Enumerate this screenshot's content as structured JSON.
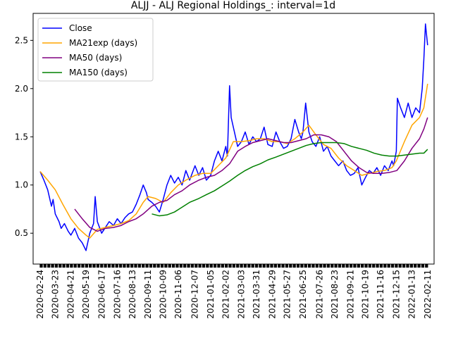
{
  "chart_data": {
    "type": "line",
    "title": "ALJJ - ALJ Regional Holdings_: interval=1d",
    "xlabel": "",
    "ylabel": "",
    "ylim": [
      0.18,
      2.78
    ],
    "xlim": [
      "2020-02-11",
      "2022-02-23"
    ],
    "y_ticks": [
      0.5,
      1.0,
      1.5,
      2.0,
      2.5
    ],
    "y_tick_labels": [
      "0.5",
      "1.0",
      "1.5",
      "2.0",
      "2.5"
    ],
    "x_tick_labels": [
      "2020-02-24",
      "2020-03-23",
      "2020-04-21",
      "2020-05-19",
      "2020-06-17",
      "2020-07-16",
      "2020-08-13",
      "2020-09-11",
      "2020-10-09",
      "2020-11-06",
      "2020-12-07",
      "2021-01-05",
      "2021-02-02",
      "2021-03-03",
      "2021-03-31",
      "2021-04-29",
      "2021-05-27",
      "2021-06-25",
      "2021-07-26",
      "2021-08-23",
      "2021-09-21",
      "2021-10-19",
      "2021-11-16",
      "2021-12-15",
      "2022-01-13",
      "2022-02-11"
    ],
    "grid": false,
    "legend_position": "upper-left",
    "series": [
      {
        "name": "Close",
        "color": "#0000ff",
        "points": [
          [
            "2020-02-24",
            1.14
          ],
          [
            "2020-03-02",
            1.05
          ],
          [
            "2020-03-09",
            0.95
          ],
          [
            "2020-03-16",
            0.78
          ],
          [
            "2020-03-19",
            0.85
          ],
          [
            "2020-03-23",
            0.7
          ],
          [
            "2020-03-30",
            0.62
          ],
          [
            "2020-04-03",
            0.55
          ],
          [
            "2020-04-09",
            0.6
          ],
          [
            "2020-04-16",
            0.52
          ],
          [
            "2020-04-21",
            0.48
          ],
          [
            "2020-04-28",
            0.55
          ],
          [
            "2020-05-05",
            0.45
          ],
          [
            "2020-05-12",
            0.4
          ],
          [
            "2020-05-19",
            0.32
          ],
          [
            "2020-05-26",
            0.5
          ],
          [
            "2020-06-02",
            0.6
          ],
          [
            "2020-06-05",
            0.88
          ],
          [
            "2020-06-09",
            0.62
          ],
          [
            "2020-06-17",
            0.5
          ],
          [
            "2020-06-24",
            0.56
          ],
          [
            "2020-07-01",
            0.62
          ],
          [
            "2020-07-09",
            0.58
          ],
          [
            "2020-07-16",
            0.65
          ],
          [
            "2020-07-23",
            0.6
          ],
          [
            "2020-07-30",
            0.66
          ],
          [
            "2020-08-06",
            0.7
          ],
          [
            "2020-08-13",
            0.72
          ],
          [
            "2020-08-20",
            0.8
          ],
          [
            "2020-08-27",
            0.9
          ],
          [
            "2020-09-02",
            1.0
          ],
          [
            "2020-09-08",
            0.92
          ],
          [
            "2020-09-11",
            0.85
          ],
          [
            "2020-09-18",
            0.82
          ],
          [
            "2020-09-25",
            0.78
          ],
          [
            "2020-10-02",
            0.72
          ],
          [
            "2020-10-09",
            0.85
          ],
          [
            "2020-10-16",
            1.0
          ],
          [
            "2020-10-23",
            1.1
          ],
          [
            "2020-10-30",
            1.02
          ],
          [
            "2020-11-06",
            1.08
          ],
          [
            "2020-11-13",
            1.0
          ],
          [
            "2020-11-20",
            1.15
          ],
          [
            "2020-11-27",
            1.05
          ],
          [
            "2020-12-07",
            1.2
          ],
          [
            "2020-12-14",
            1.1
          ],
          [
            "2020-12-21",
            1.18
          ],
          [
            "2020-12-28",
            1.05
          ],
          [
            "2021-01-05",
            1.1
          ],
          [
            "2021-01-12",
            1.25
          ],
          [
            "2021-01-19",
            1.35
          ],
          [
            "2021-01-26",
            1.25
          ],
          [
            "2021-02-02",
            1.4
          ],
          [
            "2021-02-05",
            1.3
          ],
          [
            "2021-02-09",
            2.03
          ],
          [
            "2021-02-12",
            1.7
          ],
          [
            "2021-02-18",
            1.55
          ],
          [
            "2021-02-24",
            1.4
          ],
          [
            "2021-03-03",
            1.45
          ],
          [
            "2021-03-10",
            1.55
          ],
          [
            "2021-03-17",
            1.42
          ],
          [
            "2021-03-24",
            1.5
          ],
          [
            "2021-03-31",
            1.45
          ],
          [
            "2021-04-07",
            1.48
          ],
          [
            "2021-04-14",
            1.6
          ],
          [
            "2021-04-21",
            1.42
          ],
          [
            "2021-04-29",
            1.4
          ],
          [
            "2021-05-06",
            1.55
          ],
          [
            "2021-05-13",
            1.45
          ],
          [
            "2021-05-20",
            1.38
          ],
          [
            "2021-05-27",
            1.4
          ],
          [
            "2021-06-03",
            1.48
          ],
          [
            "2021-06-10",
            1.68
          ],
          [
            "2021-06-17",
            1.55
          ],
          [
            "2021-06-22",
            1.48
          ],
          [
            "2021-06-25",
            1.55
          ],
          [
            "2021-06-30",
            1.85
          ],
          [
            "2021-07-06",
            1.55
          ],
          [
            "2021-07-12",
            1.45
          ],
          [
            "2021-07-19",
            1.4
          ],
          [
            "2021-07-26",
            1.5
          ],
          [
            "2021-08-02",
            1.35
          ],
          [
            "2021-08-09",
            1.4
          ],
          [
            "2021-08-16",
            1.3
          ],
          [
            "2021-08-23",
            1.25
          ],
          [
            "2021-08-30",
            1.2
          ],
          [
            "2021-09-07",
            1.25
          ],
          [
            "2021-09-14",
            1.15
          ],
          [
            "2021-09-21",
            1.1
          ],
          [
            "2021-09-28",
            1.12
          ],
          [
            "2021-10-05",
            1.18
          ],
          [
            "2021-10-12",
            1.0
          ],
          [
            "2021-10-19",
            1.08
          ],
          [
            "2021-10-26",
            1.15
          ],
          [
            "2021-11-02",
            1.12
          ],
          [
            "2021-11-09",
            1.18
          ],
          [
            "2021-11-16",
            1.1
          ],
          [
            "2021-11-23",
            1.2
          ],
          [
            "2021-11-30",
            1.15
          ],
          [
            "2021-12-07",
            1.25
          ],
          [
            "2021-12-10",
            1.2
          ],
          [
            "2021-12-15",
            1.35
          ],
          [
            "2021-12-17",
            1.9
          ],
          [
            "2021-12-23",
            1.8
          ],
          [
            "2021-12-30",
            1.7
          ],
          [
            "2022-01-06",
            1.85
          ],
          [
            "2022-01-13",
            1.7
          ],
          [
            "2022-01-20",
            1.8
          ],
          [
            "2022-01-27",
            1.75
          ],
          [
            "2022-02-01",
            2.0
          ],
          [
            "2022-02-04",
            2.3
          ],
          [
            "2022-02-07",
            2.67
          ],
          [
            "2022-02-11",
            2.45
          ]
        ]
      },
      {
        "name": "MA21exp (days)",
        "color": "#ffa500",
        "points": [
          [
            "2020-02-24",
            1.14
          ],
          [
            "2020-03-09",
            1.05
          ],
          [
            "2020-03-23",
            0.95
          ],
          [
            "2020-04-06",
            0.8
          ],
          [
            "2020-04-21",
            0.65
          ],
          [
            "2020-05-05",
            0.55
          ],
          [
            "2020-05-19",
            0.48
          ],
          [
            "2020-05-26",
            0.45
          ],
          [
            "2020-06-09",
            0.54
          ],
          [
            "2020-06-24",
            0.56
          ],
          [
            "2020-07-09",
            0.58
          ],
          [
            "2020-07-23",
            0.6
          ],
          [
            "2020-08-06",
            0.63
          ],
          [
            "2020-08-20",
            0.7
          ],
          [
            "2020-09-02",
            0.82
          ],
          [
            "2020-09-11",
            0.88
          ],
          [
            "2020-09-25",
            0.86
          ],
          [
            "2020-10-09",
            0.82
          ],
          [
            "2020-10-23",
            0.92
          ],
          [
            "2020-11-06",
            1.0
          ],
          [
            "2020-11-20",
            1.05
          ],
          [
            "2020-12-07",
            1.1
          ],
          [
            "2020-12-21",
            1.12
          ],
          [
            "2021-01-05",
            1.12
          ],
          [
            "2021-01-19",
            1.2
          ],
          [
            "2021-02-02",
            1.28
          ],
          [
            "2021-02-16",
            1.45
          ],
          [
            "2021-03-03",
            1.45
          ],
          [
            "2021-03-17",
            1.46
          ],
          [
            "2021-03-31",
            1.48
          ],
          [
            "2021-04-14",
            1.48
          ],
          [
            "2021-04-29",
            1.45
          ],
          [
            "2021-05-13",
            1.45
          ],
          [
            "2021-05-27",
            1.43
          ],
          [
            "2021-06-10",
            1.48
          ],
          [
            "2021-06-25",
            1.55
          ],
          [
            "2021-07-06",
            1.62
          ],
          [
            "2021-07-19",
            1.52
          ],
          [
            "2021-08-02",
            1.42
          ],
          [
            "2021-08-16",
            1.38
          ],
          [
            "2021-08-30",
            1.28
          ],
          [
            "2021-09-14",
            1.2
          ],
          [
            "2021-09-28",
            1.15
          ],
          [
            "2021-10-12",
            1.1
          ],
          [
            "2021-10-26",
            1.12
          ],
          [
            "2021-11-09",
            1.14
          ],
          [
            "2021-11-23",
            1.15
          ],
          [
            "2021-12-07",
            1.18
          ],
          [
            "2021-12-15",
            1.25
          ],
          [
            "2021-12-30",
            1.45
          ],
          [
            "2022-01-13",
            1.62
          ],
          [
            "2022-01-27",
            1.7
          ],
          [
            "2022-02-04",
            1.8
          ],
          [
            "2022-02-11",
            2.05
          ]
        ]
      },
      {
        "name": "MA50 (days)",
        "color": "#800080",
        "points": [
          [
            "2020-04-28",
            0.75
          ],
          [
            "2020-05-12",
            0.65
          ],
          [
            "2020-05-26",
            0.56
          ],
          [
            "2020-06-09",
            0.52
          ],
          [
            "2020-06-24",
            0.55
          ],
          [
            "2020-07-09",
            0.56
          ],
          [
            "2020-07-23",
            0.58
          ],
          [
            "2020-08-06",
            0.62
          ],
          [
            "2020-08-20",
            0.65
          ],
          [
            "2020-09-02",
            0.7
          ],
          [
            "2020-09-18",
            0.78
          ],
          [
            "2020-10-02",
            0.82
          ],
          [
            "2020-10-16",
            0.84
          ],
          [
            "2020-10-30",
            0.9
          ],
          [
            "2020-11-13",
            0.94
          ],
          [
            "2020-11-27",
            1.0
          ],
          [
            "2020-12-14",
            1.05
          ],
          [
            "2020-12-28",
            1.08
          ],
          [
            "2021-01-12",
            1.1
          ],
          [
            "2021-01-26",
            1.15
          ],
          [
            "2021-02-09",
            1.22
          ],
          [
            "2021-02-24",
            1.35
          ],
          [
            "2021-03-10",
            1.4
          ],
          [
            "2021-03-24",
            1.44
          ],
          [
            "2021-04-07",
            1.46
          ],
          [
            "2021-04-21",
            1.48
          ],
          [
            "2021-05-06",
            1.46
          ],
          [
            "2021-05-20",
            1.44
          ],
          [
            "2021-06-03",
            1.44
          ],
          [
            "2021-06-17",
            1.46
          ],
          [
            "2021-07-01",
            1.48
          ],
          [
            "2021-07-15",
            1.52
          ],
          [
            "2021-07-29",
            1.52
          ],
          [
            "2021-08-12",
            1.5
          ],
          [
            "2021-08-26",
            1.45
          ],
          [
            "2021-09-09",
            1.35
          ],
          [
            "2021-09-23",
            1.25
          ],
          [
            "2021-10-07",
            1.18
          ],
          [
            "2021-10-21",
            1.13
          ],
          [
            "2021-11-04",
            1.12
          ],
          [
            "2021-11-18",
            1.12
          ],
          [
            "2021-12-02",
            1.13
          ],
          [
            "2021-12-16",
            1.15
          ],
          [
            "2021-12-30",
            1.25
          ],
          [
            "2022-01-13",
            1.38
          ],
          [
            "2022-01-27",
            1.48
          ],
          [
            "2022-02-04",
            1.58
          ],
          [
            "2022-02-11",
            1.7
          ]
        ]
      },
      {
        "name": "MA150 (days)",
        "color": "#008000",
        "points": [
          [
            "2020-09-18",
            0.7
          ],
          [
            "2020-10-02",
            0.68
          ],
          [
            "2020-10-16",
            0.69
          ],
          [
            "2020-10-30",
            0.72
          ],
          [
            "2020-11-13",
            0.77
          ],
          [
            "2020-11-27",
            0.82
          ],
          [
            "2020-12-14",
            0.86
          ],
          [
            "2020-12-28",
            0.9
          ],
          [
            "2021-01-12",
            0.94
          ],
          [
            "2021-01-26",
            0.99
          ],
          [
            "2021-02-09",
            1.04
          ],
          [
            "2021-02-24",
            1.1
          ],
          [
            "2021-03-10",
            1.15
          ],
          [
            "2021-03-24",
            1.19
          ],
          [
            "2021-04-07",
            1.22
          ],
          [
            "2021-04-21",
            1.26
          ],
          [
            "2021-05-06",
            1.29
          ],
          [
            "2021-05-20",
            1.32
          ],
          [
            "2021-06-03",
            1.35
          ],
          [
            "2021-06-17",
            1.38
          ],
          [
            "2021-07-01",
            1.41
          ],
          [
            "2021-07-15",
            1.43
          ],
          [
            "2021-07-29",
            1.44
          ],
          [
            "2021-08-12",
            1.44
          ],
          [
            "2021-08-26",
            1.44
          ],
          [
            "2021-09-09",
            1.43
          ],
          [
            "2021-09-23",
            1.4
          ],
          [
            "2021-10-07",
            1.38
          ],
          [
            "2021-10-21",
            1.36
          ],
          [
            "2021-11-04",
            1.33
          ],
          [
            "2021-11-18",
            1.31
          ],
          [
            "2021-12-02",
            1.3
          ],
          [
            "2021-12-16",
            1.3
          ],
          [
            "2021-12-30",
            1.31
          ],
          [
            "2022-01-13",
            1.32
          ],
          [
            "2022-01-27",
            1.33
          ],
          [
            "2022-02-04",
            1.33
          ],
          [
            "2022-02-11",
            1.37
          ]
        ]
      }
    ]
  }
}
